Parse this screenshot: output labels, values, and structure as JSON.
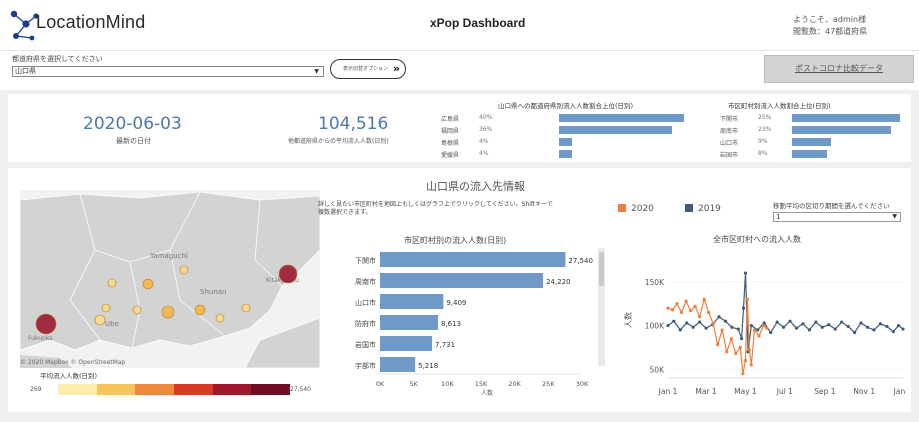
{
  "header": {
    "logo_text": "LocationMind",
    "title": "xPop Dashboard",
    "user_line1": "ようこそ、admin様",
    "user_line2": "閲覧数：47都道府県"
  },
  "controls": {
    "select_label": "都道府県を選択してください",
    "select_value": "山口県",
    "toggle_label": "表示切替オプション",
    "corona_button": "ポストコロナ比較データ"
  },
  "kpi": {
    "latest_date": "2020-06-03",
    "latest_date_label": "最新の日付",
    "avg_inflow": "104,516",
    "avg_inflow_label": "他都道府県からの平均流入人数(日別)"
  },
  "pref_share": {
    "title": "山口県への都道府県別流入人数割合上位(日別)",
    "rows": [
      {
        "name": "広島県",
        "pct": "40%",
        "value": 40
      },
      {
        "name": "福岡県",
        "pct": "36%",
        "value": 36
      },
      {
        "name": "島根県",
        "pct": "4%",
        "value": 4
      },
      {
        "name": "愛媛県",
        "pct": "4%",
        "value": 4
      }
    ]
  },
  "city_share": {
    "title": "市区町村別流入人数割合上位(日別)",
    "rows": [
      {
        "name": "下関市",
        "pct": "25%",
        "value": 25
      },
      {
        "name": "周南市",
        "pct": "23%",
        "value": 23
      },
      {
        "name": "山口市",
        "pct": "9%",
        "value": 9
      },
      {
        "name": "岩国市",
        "pct": "8%",
        "value": 8
      }
    ]
  },
  "section": {
    "title": "山口県の流入先情報",
    "note": "詳しく見たい市区町村を地図上もしくはグラフ上でクリックしてください。Shiftキーで複数選択できます。"
  },
  "map": {
    "labels": [
      "Yamaguchi",
      "Shunan",
      "Ube",
      "Kitakyushu",
      "Fukuoka"
    ],
    "credit": "© 2020 Mapbox © OpenStreetMap",
    "legend_title": "平均流入人数(日別)",
    "legend_min": "269",
    "legend_max": "27,540",
    "legend_colors": [
      "#fbeeae",
      "#f6c65a",
      "#ef8a3c",
      "#d93a26",
      "#a0162a",
      "#6e0d25"
    ],
    "bubble_colors": {
      "small": "#f6dd8a",
      "mid": "#f2b648",
      "large": "#9b1a32"
    }
  },
  "city_bars": {
    "title": "市区町村別の流入人数(日別)",
    "x_label": "人数",
    "ticks": [
      "0K",
      "5K",
      "10K",
      "15K",
      "20K",
      "25K",
      "30K"
    ],
    "bar_color": "#6f9ac8"
  },
  "line_chart": {
    "title": "全市区町村への流入人数",
    "legend_2020": "2020",
    "legend_2019": "2019",
    "dropdown_label": "移動平均の区切り期間を選んでください",
    "dropdown_value": "1",
    "y_label": "人数",
    "y_ticks": [
      "150K",
      "100K",
      "50K"
    ],
    "x_ticks": [
      "Jan 1",
      "Mar 1",
      "May 1",
      "Jul 1",
      "Sep 1",
      "Nov 1",
      "Jan 1"
    ],
    "color_2020": "#ef7f3a",
    "color_2019": "#3f5b78"
  },
  "chart_data": [
    {
      "type": "bar",
      "title": "市区町村別の流入人数(日別)",
      "xlabel": "人数",
      "categories": [
        "下関市",
        "周南市",
        "山口市",
        "防府市",
        "岩国市",
        "宇部市"
      ],
      "values": [
        27540,
        24220,
        9409,
        8613,
        7731,
        5218
      ],
      "labels": [
        "27,540",
        "24,220",
        "9,409",
        "8,613",
        "7,731",
        "5,218"
      ],
      "xlim": [
        0,
        30000
      ]
    },
    {
      "type": "line",
      "title": "全市区町村への流入人数",
      "ylabel": "人数",
      "ylim": [
        40000,
        175000
      ],
      "series": [
        {
          "name": "2020",
          "x": [
            1,
            8,
            15,
            22,
            29,
            36,
            43,
            50,
            57,
            64,
            71,
            78,
            85,
            92,
            99,
            106,
            113,
            117,
            121,
            124,
            127,
            130,
            135,
            142,
            149,
            154
          ],
          "y": [
            120000,
            118000,
            125000,
            115000,
            128000,
            117000,
            122000,
            110000,
            130000,
            115000,
            102000,
            78000,
            95000,
            70000,
            85000,
            68000,
            75000,
            45000,
            60000,
            130000,
            72000,
            55000,
            95000,
            88000,
            100000,
            97000
          ]
        },
        {
          "name": "2019",
          "x": [
            1,
            10,
            20,
            30,
            40,
            50,
            60,
            70,
            80,
            90,
            100,
            110,
            115,
            118,
            121,
            125,
            130,
            140,
            150,
            160,
            170,
            180,
            190,
            200,
            210,
            220,
            230,
            240,
            250,
            260,
            270,
            280,
            290,
            300,
            310,
            320,
            330,
            340,
            350,
            358,
            365
          ],
          "y": [
            100000,
            105000,
            95000,
            103000,
            98000,
            104000,
            97000,
            101000,
            110000,
            105000,
            98000,
            96000,
            85000,
            120000,
            160000,
            70000,
            100000,
            95000,
            103000,
            92000,
            104000,
            98000,
            105000,
            97000,
            102000,
            95000,
            104000,
            98000,
            101000,
            96000,
            104000,
            99000,
            92000,
            103000,
            98000,
            95000,
            102000,
            99000,
            93000,
            100000,
            96000
          ]
        }
      ]
    }
  ]
}
